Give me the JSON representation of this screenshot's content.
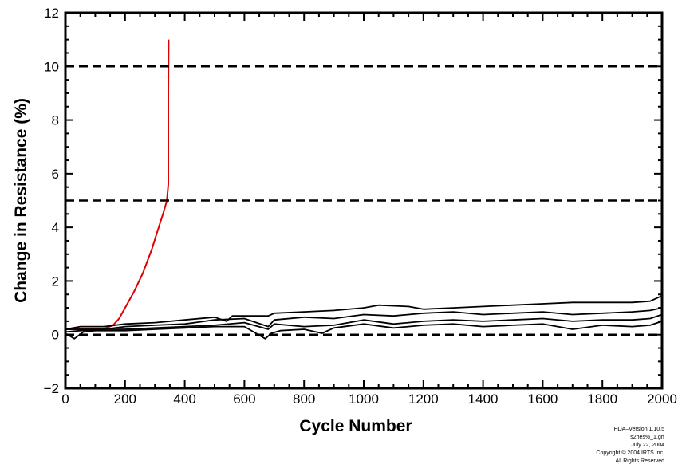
{
  "chart_data": {
    "type": "line",
    "title": "",
    "xlabel": "Cycle Number",
    "ylabel": "Change in Resistance (%)",
    "xlim": [
      0,
      2000
    ],
    "ylim": [
      -2,
      12
    ],
    "xticks": [
      0,
      200,
      400,
      600,
      800,
      1000,
      1200,
      1400,
      1600,
      1800,
      2000
    ],
    "yticks": [
      -2,
      0,
      2,
      4,
      6,
      8,
      10,
      12
    ],
    "grid": false,
    "reference_lines": [
      {
        "y": 10,
        "style": "dashed"
      },
      {
        "y": 5,
        "style": "dashed"
      },
      {
        "y": 0,
        "style": "dashed"
      }
    ],
    "series": [
      {
        "color": "#e00000",
        "x": [
          0,
          50,
          100,
          130,
          160,
          180,
          200,
          230,
          260,
          290,
          310,
          330,
          340,
          345,
          345,
          345,
          346
        ],
        "y": [
          0.2,
          0.2,
          0.2,
          0.22,
          0.35,
          0.6,
          1.0,
          1.6,
          2.3,
          3.2,
          3.9,
          4.6,
          5.0,
          5.6,
          6.3,
          9.0,
          11.0
        ]
      },
      {
        "color": "#000000",
        "x": [
          0,
          50,
          130,
          200,
          300,
          400,
          500,
          540,
          560,
          600,
          680,
          700,
          800,
          900,
          1000,
          1050,
          1150,
          1200,
          1300,
          1400,
          1500,
          1600,
          1700,
          1800,
          1900,
          1960,
          2000
        ],
        "y": [
          0.2,
          0.3,
          0.3,
          0.4,
          0.45,
          0.55,
          0.65,
          0.5,
          0.7,
          0.7,
          0.7,
          0.8,
          0.85,
          0.9,
          1.0,
          1.1,
          1.05,
          0.95,
          1.0,
          1.05,
          1.1,
          1.15,
          1.2,
          1.2,
          1.2,
          1.25,
          1.45
        ]
      },
      {
        "color": "#000000",
        "x": [
          0,
          50,
          130,
          200,
          300,
          400,
          500,
          600,
          680,
          700,
          800,
          900,
          1000,
          1100,
          1200,
          1300,
          1400,
          1500,
          1600,
          1700,
          1800,
          1900,
          1960,
          2000
        ],
        "y": [
          0.2,
          0.2,
          0.2,
          0.3,
          0.35,
          0.4,
          0.55,
          0.6,
          0.3,
          0.55,
          0.65,
          0.6,
          0.75,
          0.7,
          0.8,
          0.85,
          0.75,
          0.8,
          0.85,
          0.75,
          0.8,
          0.85,
          0.9,
          1.0
        ]
      },
      {
        "color": "#000000",
        "x": [
          0,
          50,
          130,
          200,
          300,
          400,
          500,
          600,
          680,
          700,
          800,
          900,
          1000,
          1100,
          1200,
          1300,
          1400,
          1500,
          1600,
          1700,
          1800,
          1900,
          1960,
          2000
        ],
        "y": [
          0.1,
          0.15,
          0.2,
          0.2,
          0.25,
          0.3,
          0.35,
          0.45,
          0.2,
          0.4,
          0.3,
          0.35,
          0.55,
          0.4,
          0.5,
          0.55,
          0.5,
          0.55,
          0.6,
          0.5,
          0.55,
          0.55,
          0.6,
          0.75
        ]
      },
      {
        "color": "#000000",
        "x": [
          0,
          30,
          60,
          100,
          200,
          300,
          400,
          500,
          600,
          670,
          690,
          720,
          800,
          860,
          900,
          1000,
          1100,
          1150,
          1200,
          1300,
          1400,
          1500,
          1600,
          1700,
          1800,
          1900,
          1960,
          2000
        ],
        "y": [
          0.05,
          -0.15,
          0.1,
          0.15,
          0.15,
          0.2,
          0.25,
          0.3,
          0.3,
          -0.15,
          0.05,
          0.15,
          0.2,
          0.05,
          0.25,
          0.4,
          0.25,
          0.3,
          0.35,
          0.4,
          0.3,
          0.35,
          0.4,
          0.2,
          0.35,
          0.3,
          0.35,
          0.5
        ]
      }
    ]
  },
  "footer": {
    "line1": "HDA–Version 1.10.5",
    "line2": "s2hes%_1.grf",
    "line3": "July 22, 2004",
    "line4": "Copyright © 2004 IRTS Inc.",
    "line5": "All Rights Reserved"
  }
}
